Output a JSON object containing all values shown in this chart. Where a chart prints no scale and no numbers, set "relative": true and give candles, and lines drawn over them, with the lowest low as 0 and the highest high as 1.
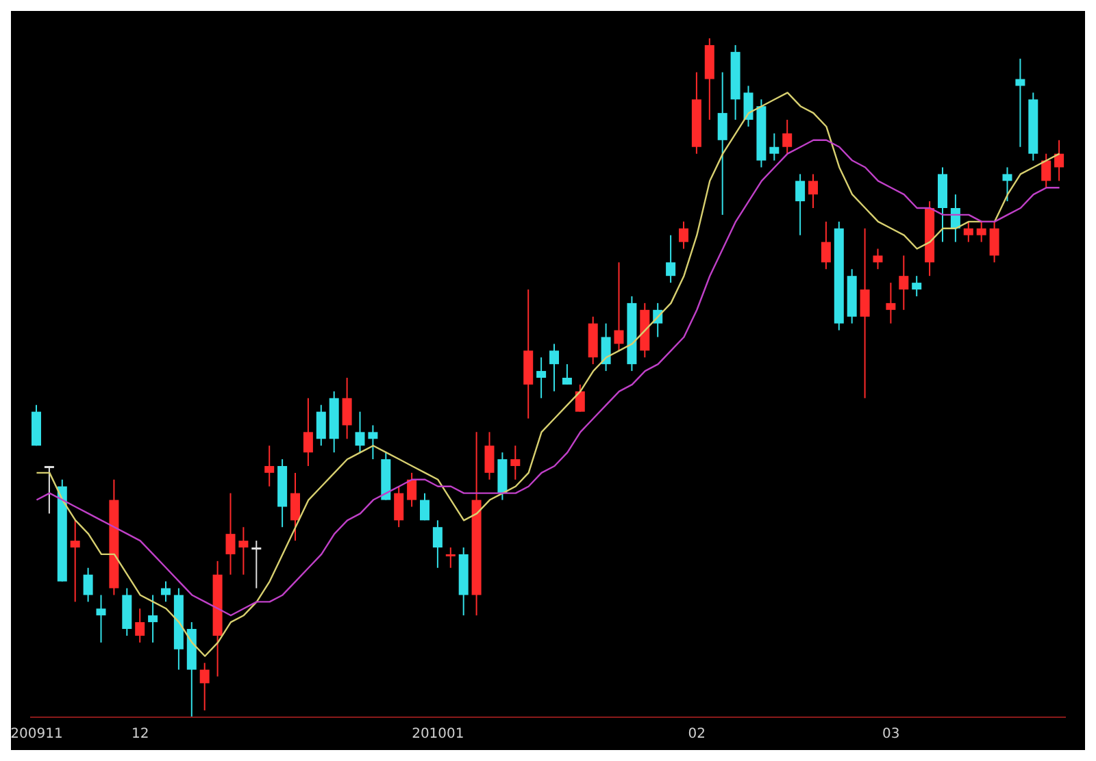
{
  "chart_data": {
    "type": "candlestick",
    "relative": true,
    "categories": [
      "200911",
      null,
      null,
      null,
      null,
      null,
      null,
      null,
      "12",
      null,
      null,
      null,
      null,
      null,
      null,
      null,
      null,
      null,
      null,
      null,
      null,
      null,
      null,
      null,
      null,
      null,
      null,
      null,
      null,
      null,
      null,
      "201001",
      null,
      null,
      null,
      null,
      null,
      null,
      null,
      null,
      null,
      null,
      null,
      null,
      null,
      null,
      null,
      null,
      null,
      null,
      null,
      "02",
      null,
      null,
      null,
      null,
      null,
      null,
      null,
      null,
      null,
      null,
      null,
      null,
      null,
      null,
      "03",
      null,
      null,
      null,
      null,
      null,
      null,
      null,
      null,
      null,
      null,
      null,
      null,
      null
    ],
    "ohlc": [
      [
        0.45,
        0.46,
        0.4,
        0.4
      ],
      [
        0.37,
        0.37,
        0.3,
        0.37
      ],
      [
        0.34,
        0.35,
        0.2,
        0.2
      ],
      [
        0.25,
        0.29,
        0.17,
        0.26
      ],
      [
        0.21,
        0.22,
        0.17,
        0.18
      ],
      [
        0.16,
        0.18,
        0.11,
        0.15
      ],
      [
        0.19,
        0.35,
        0.18,
        0.32
      ],
      [
        0.18,
        0.19,
        0.12,
        0.13
      ],
      [
        0.12,
        0.16,
        0.11,
        0.14
      ],
      [
        0.15,
        0.18,
        0.11,
        0.14
      ],
      [
        0.19,
        0.2,
        0.17,
        0.18
      ],
      [
        0.18,
        0.19,
        0.07,
        0.1
      ],
      [
        0.13,
        0.14,
        0,
        0.07
      ],
      [
        0.05,
        0.08,
        0.01,
        0.07
      ],
      [
        0.12,
        0.23,
        0.06,
        0.21
      ],
      [
        0.24,
        0.33,
        0.21,
        0.27
      ],
      [
        0.25,
        0.28,
        0.21,
        0.26
      ],
      [
        0.25,
        0.26,
        0.19,
        0.25
      ],
      [
        0.36,
        0.4,
        0.34,
        0.37
      ],
      [
        0.37,
        0.38,
        0.28,
        0.31
      ],
      [
        0.29,
        0.36,
        0.26,
        0.33
      ],
      [
        0.39,
        0.47,
        0.37,
        0.42
      ],
      [
        0.45,
        0.46,
        0.4,
        0.41
      ],
      [
        0.47,
        0.48,
        0.39,
        0.41
      ],
      [
        0.43,
        0.5,
        0.41,
        0.47
      ],
      [
        0.42,
        0.45,
        0.39,
        0.4
      ],
      [
        0.42,
        0.43,
        0.38,
        0.41
      ],
      [
        0.38,
        0.39,
        0.32,
        0.32
      ],
      [
        0.29,
        0.34,
        0.28,
        0.33
      ],
      [
        0.32,
        0.36,
        0.31,
        0.35
      ],
      [
        0.32,
        0.33,
        0.29,
        0.29
      ],
      [
        0.28,
        0.29,
        0.22,
        0.25
      ],
      [
        0.24,
        0.25,
        0.22,
        0.24
      ],
      [
        0.24,
        0.25,
        0.15,
        0.18
      ],
      [
        0.18,
        0.42,
        0.15,
        0.32
      ],
      [
        0.36,
        0.42,
        0.35,
        0.4
      ],
      [
        0.38,
        0.39,
        0.32,
        0.33
      ],
      [
        0.37,
        0.4,
        0.35,
        0.38
      ],
      [
        0.49,
        0.63,
        0.44,
        0.54
      ],
      [
        0.51,
        0.53,
        0.47,
        0.5
      ],
      [
        0.54,
        0.55,
        0.48,
        0.52
      ],
      [
        0.5,
        0.52,
        0.49,
        0.49
      ],
      [
        0.45,
        0.49,
        0.45,
        0.48
      ],
      [
        0.53,
        0.59,
        0.52,
        0.58
      ],
      [
        0.56,
        0.58,
        0.51,
        0.52
      ],
      [
        0.55,
        0.67,
        0.54,
        0.57
      ],
      [
        0.61,
        0.62,
        0.51,
        0.52
      ],
      [
        0.54,
        0.61,
        0.53,
        0.6
      ],
      [
        0.6,
        0.61,
        0.56,
        0.58
      ],
      [
        0.67,
        0.71,
        0.64,
        0.65
      ],
      [
        0.7,
        0.73,
        0.69,
        0.72
      ],
      [
        0.84,
        0.95,
        0.83,
        0.91
      ],
      [
        0.94,
        1,
        0.88,
        0.99
      ],
      [
        0.89,
        0.95,
        0.74,
        0.85
      ],
      [
        0.98,
        0.99,
        0.88,
        0.91
      ],
      [
        0.92,
        0.93,
        0.87,
        0.88
      ],
      [
        0.9,
        0.91,
        0.81,
        0.82
      ],
      [
        0.84,
        0.86,
        0.82,
        0.83
      ],
      [
        0.84,
        0.88,
        0.83,
        0.86
      ],
      [
        0.79,
        0.8,
        0.71,
        0.76
      ],
      [
        0.77,
        0.8,
        0.75,
        0.79
      ],
      [
        0.67,
        0.73,
        0.66,
        0.7
      ],
      [
        0.72,
        0.73,
        0.57,
        0.58
      ],
      [
        0.65,
        0.66,
        0.58,
        0.59
      ],
      [
        0.59,
        0.72,
        0.47,
        0.63
      ],
      [
        0.67,
        0.69,
        0.66,
        0.68
      ],
      [
        0.6,
        0.64,
        0.58,
        0.61
      ],
      [
        0.63,
        0.68,
        0.6,
        0.65
      ],
      [
        0.64,
        0.65,
        0.62,
        0.63
      ],
      [
        0.67,
        0.76,
        0.65,
        0.75
      ],
      [
        0.8,
        0.81,
        0.7,
        0.75
      ],
      [
        0.75,
        0.77,
        0.7,
        0.72
      ],
      [
        0.71,
        0.73,
        0.7,
        0.72
      ],
      [
        0.71,
        0.73,
        0.7,
        0.72
      ],
      [
        0.68,
        0.73,
        0.67,
        0.72
      ],
      [
        0.8,
        0.81,
        0.76,
        0.79
      ],
      [
        0.94,
        0.97,
        0.84,
        0.93
      ],
      [
        0.91,
        0.92,
        0.82,
        0.83
      ],
      [
        0.79,
        0.83,
        0.78,
        0.82
      ],
      [
        0.81,
        0.85,
        0.79,
        0.83
      ]
    ],
    "colors": [
      "#33e0e8",
      "#e0e0e0",
      "#33e0e8",
      "#ff2a2a",
      "#33e0e8",
      "#33e0e8",
      "#ff2a2a",
      "#33e0e8",
      "#ff2a2a",
      "#33e0e8",
      "#33e0e8",
      "#33e0e8",
      "#33e0e8",
      "#ff2a2a",
      "#ff2a2a",
      "#ff2a2a",
      "#ff2a2a",
      "#e0e0e0",
      "#ff2a2a",
      "#33e0e8",
      "#ff2a2a",
      "#ff2a2a",
      "#33e0e8",
      "#33e0e8",
      "#ff2a2a",
      "#33e0e8",
      "#33e0e8",
      "#33e0e8",
      "#ff2a2a",
      "#ff2a2a",
      "#33e0e8",
      "#33e0e8",
      "#ff2a2a",
      "#33e0e8",
      "#ff2a2a",
      "#ff2a2a",
      "#33e0e8",
      "#ff2a2a",
      "#ff2a2a",
      "#33e0e8",
      "#33e0e8",
      "#33e0e8",
      "#ff2a2a",
      "#ff2a2a",
      "#33e0e8",
      "#ff2a2a",
      "#33e0e8",
      "#ff2a2a",
      "#33e0e8",
      "#33e0e8",
      "#ff2a2a",
      "#ff2a2a",
      "#ff2a2a",
      "#33e0e8",
      "#33e0e8",
      "#33e0e8",
      "#33e0e8",
      "#33e0e8",
      "#ff2a2a",
      "#33e0e8",
      "#ff2a2a",
      "#ff2a2a",
      "#33e0e8",
      "#33e0e8",
      "#ff2a2a",
      "#ff2a2a",
      "#ff2a2a",
      "#ff2a2a",
      "#33e0e8",
      "#ff2a2a",
      "#33e0e8",
      "#33e0e8",
      "#ff2a2a",
      "#ff2a2a",
      "#ff2a2a",
      "#33e0e8",
      "#33e0e8",
      "#33e0e8",
      "#ff2a2a",
      "#ff2a2a"
    ],
    "series": [
      {
        "type": "line",
        "color": "#d8d070",
        "values": [
          0.36,
          0.36,
          0.32,
          0.29,
          0.27,
          0.24,
          0.24,
          0.21,
          0.18,
          0.17,
          0.16,
          0.14,
          0.11,
          0.09,
          0.11,
          0.14,
          0.15,
          0.17,
          0.2,
          0.24,
          0.28,
          0.32,
          0.34,
          0.36,
          0.38,
          0.39,
          0.4,
          0.39,
          0.38,
          0.37,
          0.36,
          0.35,
          0.32,
          0.29,
          0.3,
          0.32,
          0.33,
          0.34,
          0.36,
          0.42,
          0.44,
          0.46,
          0.48,
          0.51,
          0.53,
          0.54,
          0.55,
          0.57,
          0.59,
          0.61,
          0.65,
          0.71,
          0.79,
          0.83,
          0.86,
          0.89,
          0.9,
          0.91,
          0.92,
          0.9,
          0.89,
          0.87,
          0.81,
          0.77,
          0.75,
          0.73,
          0.72,
          0.71,
          0.69,
          0.7,
          0.72,
          0.72,
          0.73,
          0.73,
          0.73,
          0.77,
          0.8,
          0.81,
          0.82,
          0.83
        ]
      },
      {
        "type": "line",
        "color": "#c040c8",
        "values": [
          0.32,
          0.33,
          0.32,
          0.31,
          0.3,
          0.29,
          0.28,
          0.27,
          0.26,
          0.24,
          0.22,
          0.2,
          0.18,
          0.17,
          0.16,
          0.15,
          0.16,
          0.17,
          0.17,
          0.18,
          0.2,
          0.22,
          0.24,
          0.27,
          0.29,
          0.3,
          0.32,
          0.33,
          0.34,
          0.35,
          0.35,
          0.34,
          0.34,
          0.33,
          0.33,
          0.33,
          0.33,
          0.33,
          0.34,
          0.36,
          0.37,
          0.39,
          0.42,
          0.44,
          0.46,
          0.48,
          0.49,
          0.51,
          0.52,
          0.54,
          0.56,
          0.6,
          0.65,
          0.69,
          0.73,
          0.76,
          0.79,
          0.81,
          0.83,
          0.84,
          0.85,
          0.85,
          0.84,
          0.82,
          0.81,
          0.79,
          0.78,
          0.77,
          0.75,
          0.75,
          0.74,
          0.74,
          0.74,
          0.73,
          0.73,
          0.74,
          0.75,
          0.77,
          0.78,
          0.78
        ]
      }
    ]
  }
}
